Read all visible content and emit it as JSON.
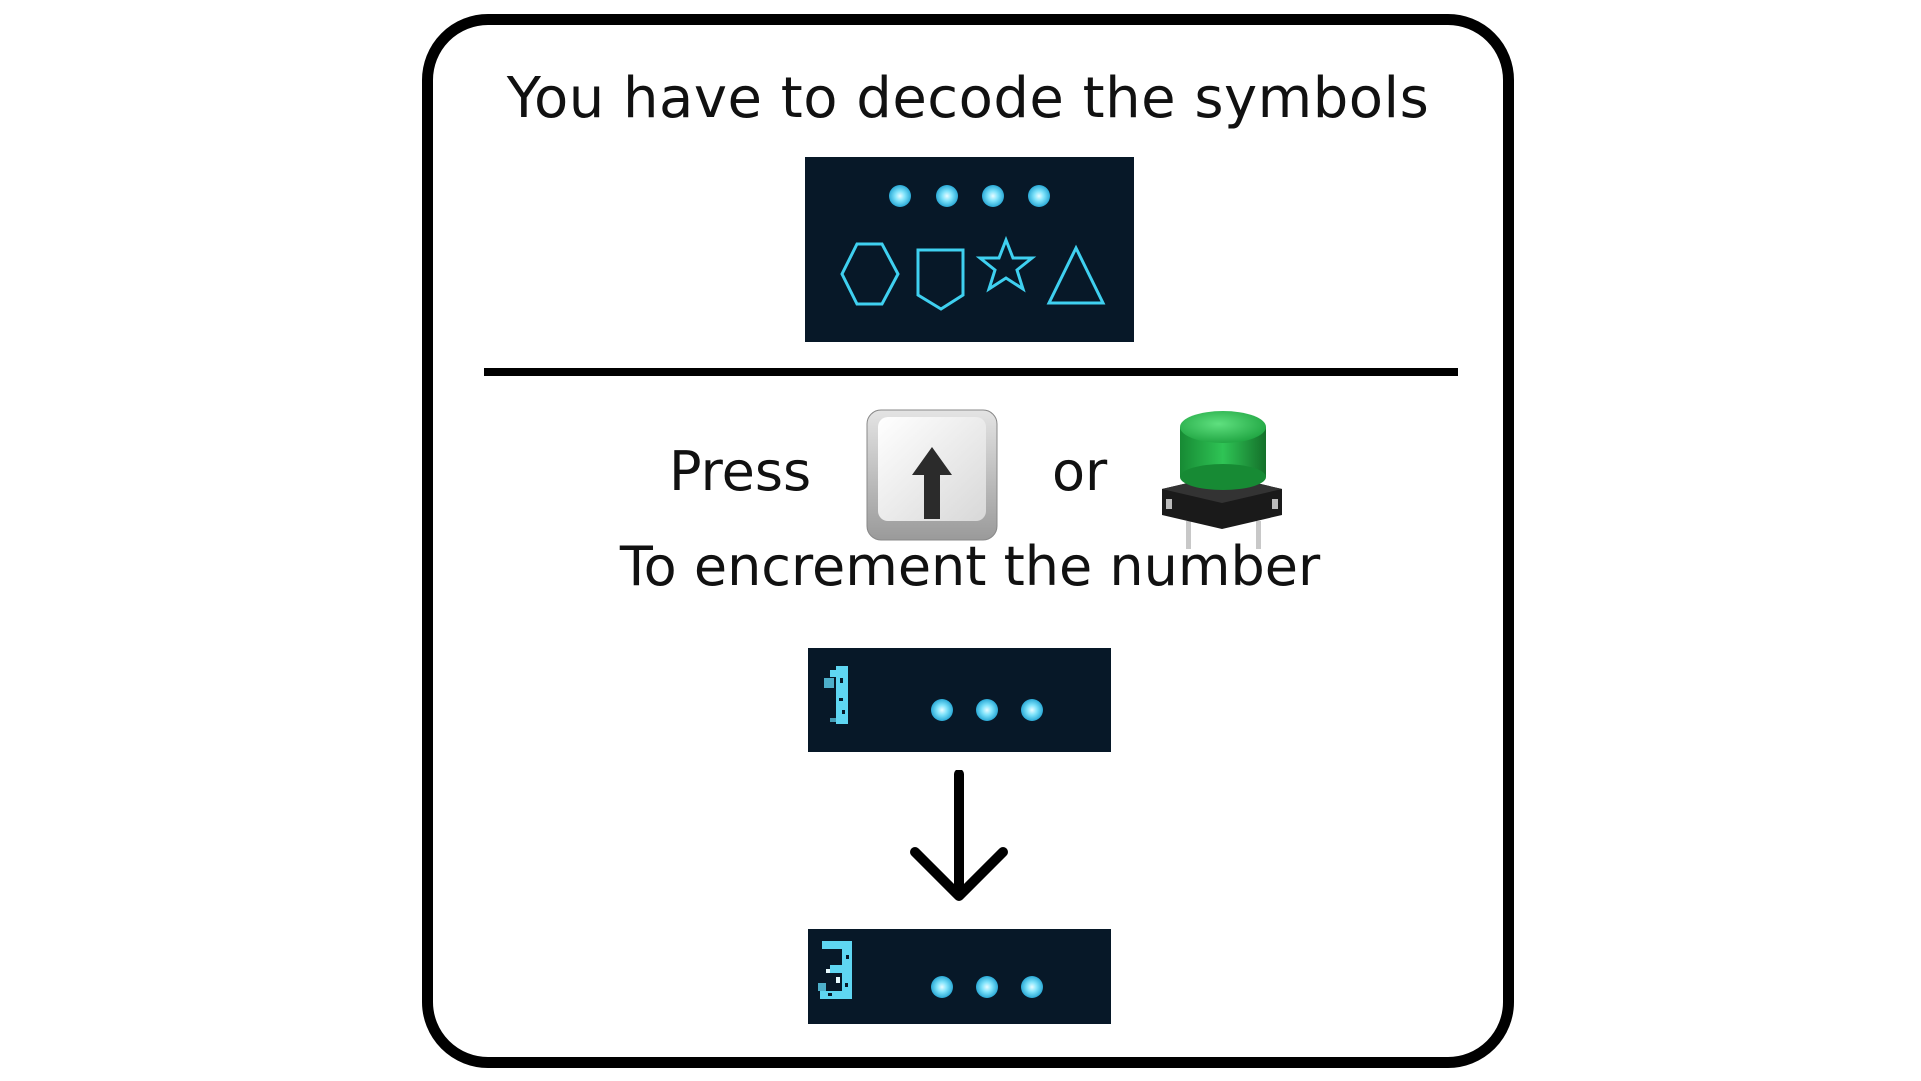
{
  "heading": "You have to decode the symbols",
  "press_label": "Press",
  "or_label": "or",
  "increment_label": "To encrement  the number",
  "symbols": [
    "hexagon-icon",
    "shield-icon",
    "star-icon",
    "triangle-icon"
  ],
  "dot_count_top": 4,
  "dot_count_rows": 3,
  "digit_before": "1",
  "digit_after": "3",
  "colors": {
    "panel": "#071828",
    "glow": "#4fd4f5",
    "button_green": "#2bb34a"
  }
}
